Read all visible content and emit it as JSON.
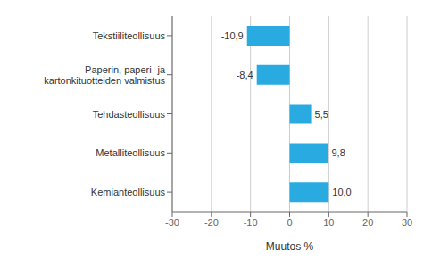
{
  "chart_data": {
    "type": "bar",
    "orientation": "horizontal",
    "categories": [
      "Tekstiiliteollisuus",
      "Paperin, paperi- ja kartonkituotteiden valmistus",
      "Tehdasteollisuus",
      "Metalliteollisuus",
      "Kemianteollisuus"
    ],
    "values": [
      -10.9,
      -8.4,
      5.5,
      9.8,
      10.0
    ],
    "value_labels": [
      "-10,9",
      "-8,4",
      "5,5",
      "9,8",
      "10,0"
    ],
    "data_labels": true,
    "color": "#29ABE2",
    "xlabel": "Muutos %",
    "xlim": [
      -30,
      30
    ],
    "xticks": [
      -30,
      -20,
      -10,
      0,
      10,
      20,
      30
    ],
    "grid": true
  }
}
